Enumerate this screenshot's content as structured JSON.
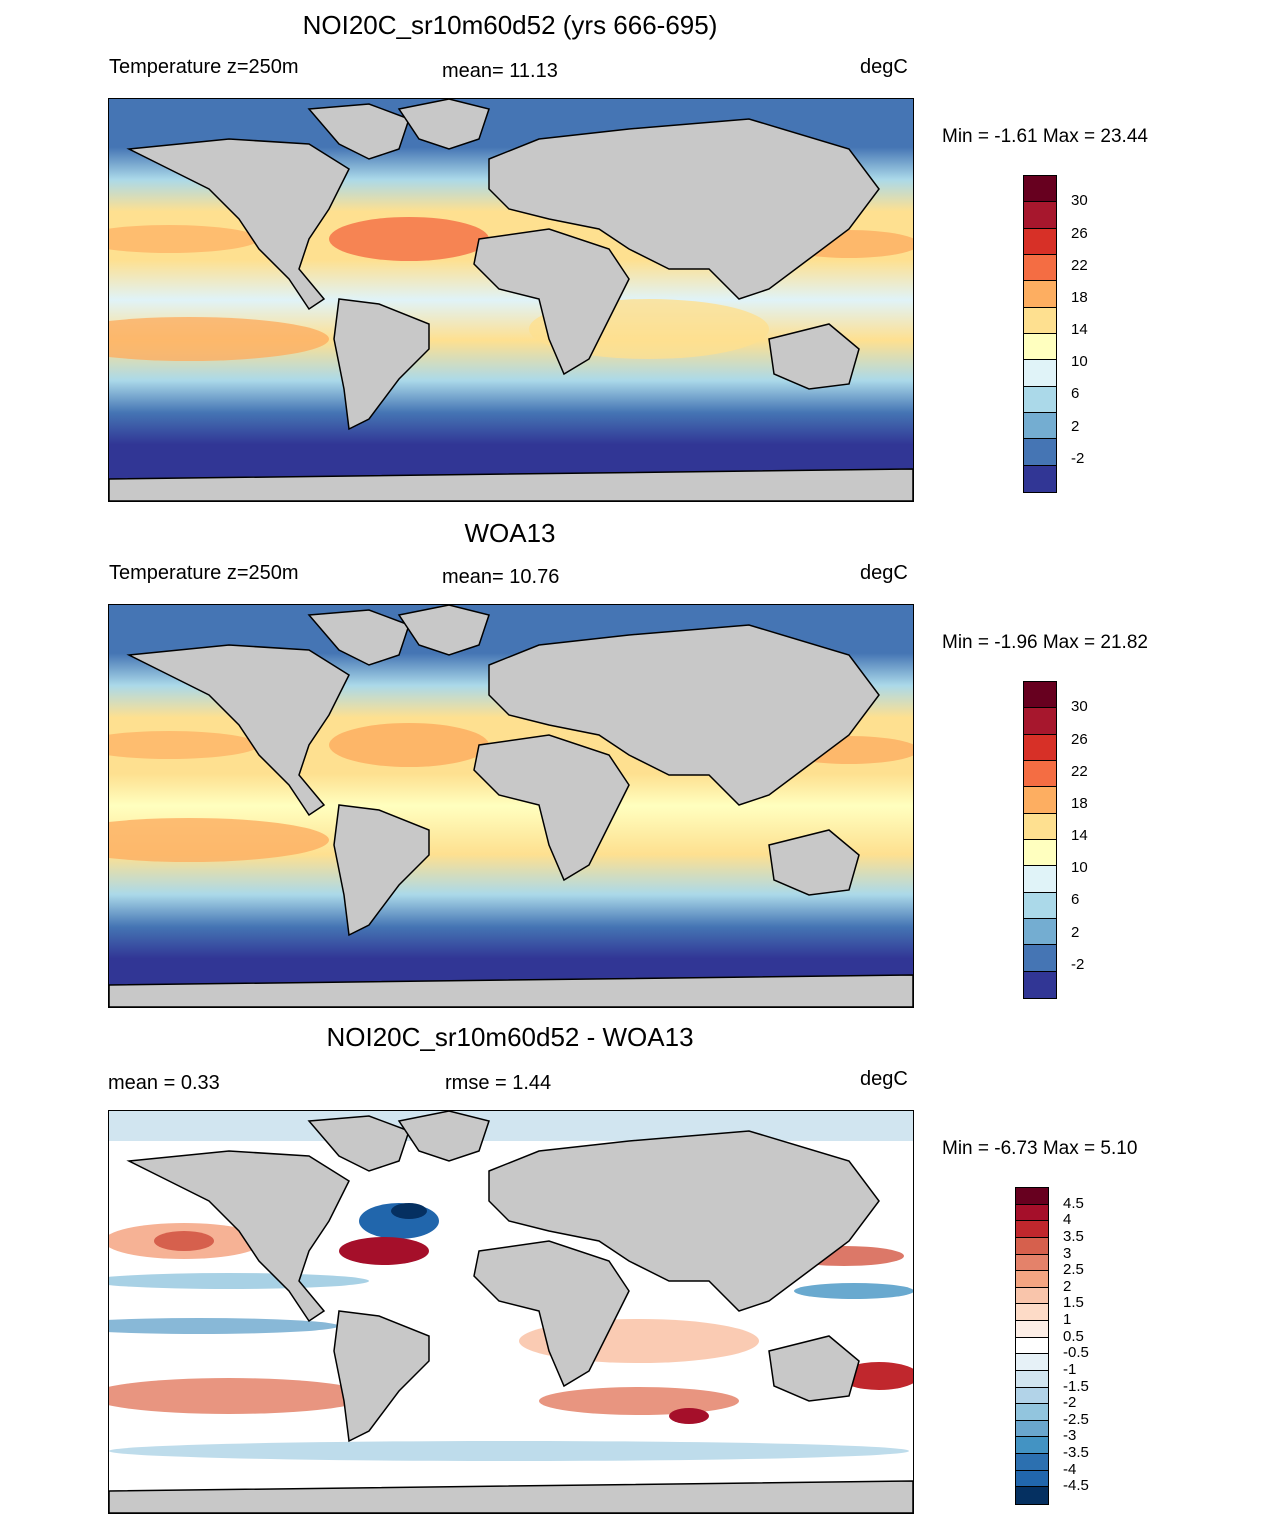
{
  "panels": [
    {
      "title": "NOI20C_sr10m60d52 (yrs 666-695)",
      "left_label": "Temperature z=250m",
      "center_label": "mean=  11.13",
      "right_label": "degC",
      "minmax": "Min =  -1.61 Max =  23.44",
      "colorbar": {
        "labels": [
          "30",
          "26",
          "22",
          "18",
          "14",
          "10",
          "6",
          "2",
          "-2"
        ],
        "colors": [
          "#67001f",
          "#a7172d",
          "#d73027",
          "#f46d43",
          "#fdae61",
          "#fee090",
          "#ffffbf",
          "#e0f3f8",
          "#abd9e9",
          "#74add1",
          "#4575b4",
          "#313695"
        ]
      }
    },
    {
      "title": "WOA13",
      "left_label": "Temperature z=250m",
      "center_label": "mean=  10.76",
      "right_label": "degC",
      "minmax": "Min =  -1.96 Max =  21.82",
      "colorbar": {
        "labels": [
          "30",
          "26",
          "22",
          "18",
          "14",
          "10",
          "6",
          "2",
          "-2"
        ],
        "colors": [
          "#67001f",
          "#a7172d",
          "#d73027",
          "#f46d43",
          "#fdae61",
          "#fee090",
          "#ffffbf",
          "#e0f3f8",
          "#abd9e9",
          "#74add1",
          "#4575b4",
          "#313695"
        ]
      }
    },
    {
      "title": "NOI20C_sr10m60d52 - WOA13",
      "left_label": "mean =   0.33",
      "center_label": "rmse =   1.44",
      "right_label": "degC",
      "minmax": "Min =  -6.73 Max =    5.10",
      "colorbar": {
        "labels": [
          "4.5",
          "4",
          "3.5",
          "3",
          "2.5",
          "2",
          "1.5",
          "1",
          "0.5",
          "-0.5",
          "-1",
          "-1.5",
          "-2",
          "-2.5",
          "-3",
          "-3.5",
          "-4",
          "-4.5"
        ],
        "colors": [
          "#67001f",
          "#a50f2a",
          "#c0272d",
          "#d6604d",
          "#e4826a",
          "#f4a582",
          "#f9c5ab",
          "#fddbc7",
          "#fdeee6",
          "#ffffff",
          "#e6f1f7",
          "#d1e5f0",
          "#b2d3e8",
          "#92c5de",
          "#6aa6cd",
          "#4393c3",
          "#2c70b0",
          "#2166ac",
          "#053061"
        ]
      }
    }
  ],
  "colors": {
    "land": "#c8c8c8",
    "coast": "#000000"
  }
}
